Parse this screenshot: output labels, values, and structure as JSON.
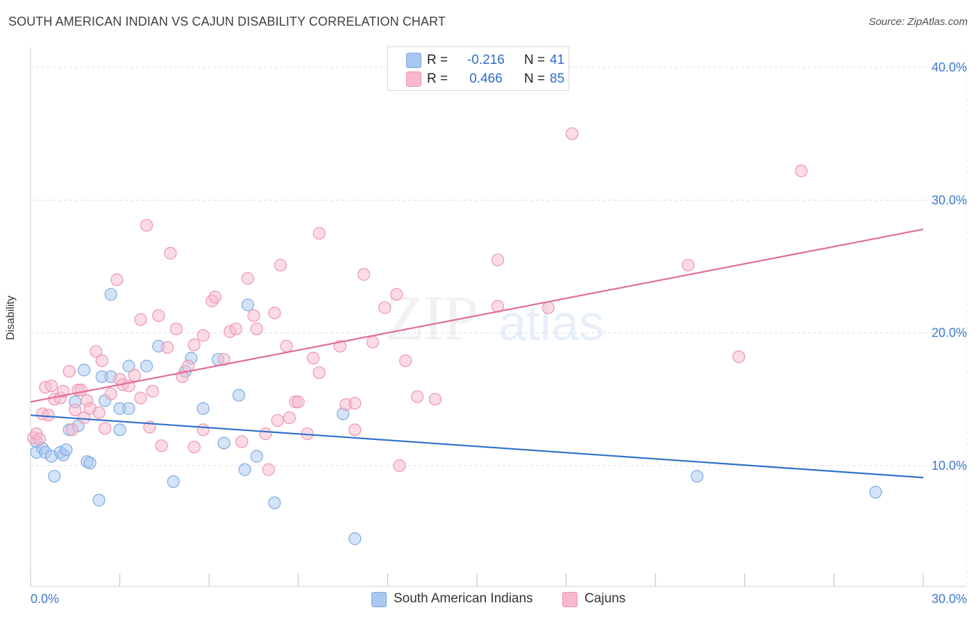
{
  "header": {
    "title": "SOUTH AMERICAN INDIAN VS CAJUN DISABILITY CORRELATION CHART",
    "source": "Source: ZipAtlas.com"
  },
  "legend": {
    "rows": [
      {
        "r_label": "R =",
        "r_value": "-0.216",
        "n_label": "N =",
        "n_value": "41",
        "color": "#a9c8f0"
      },
      {
        "r_label": "R =",
        "r_value": "0.466",
        "n_label": "N =",
        "n_value": "85",
        "color": "#f7b9cb"
      }
    ]
  },
  "bottom_legend": [
    {
      "label": "South American Indians",
      "color": "#a9c8f0"
    },
    {
      "label": "Cajuns",
      "color": "#f7b9cb"
    }
  ],
  "watermark": {
    "zip": "ZIP",
    "atlas": "atlas"
  },
  "chart_data": {
    "type": "scatter",
    "title": "SOUTH AMERICAN INDIAN VS CAJUN DISABILITY CORRELATION CHART",
    "xlabel": "",
    "ylabel": "Disability",
    "xlim": [
      0,
      30
    ],
    "ylim": [
      2,
      42
    ],
    "x_ticks": [
      {
        "v": 0,
        "label": "0.0%"
      },
      {
        "v": 30,
        "label": "30.0%"
      }
    ],
    "y_ticks": [
      {
        "v": 10,
        "label": "10.0%"
      },
      {
        "v": 20,
        "label": "20.0%"
      },
      {
        "v": 30,
        "label": "30.0%"
      },
      {
        "v": 40,
        "label": "40.0%"
      }
    ],
    "grid": true,
    "series": [
      {
        "name": "South American Indians",
        "color": "#a9c8f0",
        "stroke": "#7aaae3",
        "line_color": "#2f72cc",
        "trend": {
          "x": [
            0,
            30
          ],
          "y": [
            13.8,
            9.1
          ]
        },
        "points": [
          [
            0.2,
            11.8
          ],
          [
            0.2,
            11.0
          ],
          [
            0.4,
            11.3
          ],
          [
            0.5,
            11.0
          ],
          [
            0.7,
            10.7
          ],
          [
            0.8,
            9.2
          ],
          [
            1.0,
            11.0
          ],
          [
            1.1,
            10.8
          ],
          [
            1.2,
            11.2
          ],
          [
            1.3,
            12.7
          ],
          [
            1.5,
            14.8
          ],
          [
            1.6,
            13.0
          ],
          [
            1.8,
            17.2
          ],
          [
            1.9,
            10.3
          ],
          [
            2.0,
            10.2
          ],
          [
            2.3,
            7.4
          ],
          [
            2.4,
            16.7
          ],
          [
            2.5,
            14.9
          ],
          [
            2.7,
            22.9
          ],
          [
            2.7,
            16.7
          ],
          [
            3.0,
            14.3
          ],
          [
            3.0,
            12.7
          ],
          [
            3.3,
            14.3
          ],
          [
            3.3,
            17.5
          ],
          [
            3.9,
            17.5
          ],
          [
            4.3,
            19.0
          ],
          [
            4.8,
            8.8
          ],
          [
            5.2,
            17.1
          ],
          [
            5.4,
            18.1
          ],
          [
            5.8,
            14.3
          ],
          [
            6.3,
            18.0
          ],
          [
            6.5,
            11.7
          ],
          [
            7.0,
            15.3
          ],
          [
            7.2,
            9.7
          ],
          [
            7.3,
            22.1
          ],
          [
            7.6,
            10.7
          ],
          [
            8.2,
            7.2
          ],
          [
            10.5,
            13.9
          ],
          [
            10.9,
            4.5
          ],
          [
            22.4,
            9.2
          ],
          [
            28.4,
            8.0
          ]
        ]
      },
      {
        "name": "Cajuns",
        "color": "#f7b9cb",
        "stroke": "#ee94b0",
        "line_color": "#e06d97",
        "trend": {
          "x": [
            0,
            30
          ],
          "y": [
            14.8,
            27.8
          ]
        },
        "points": [
          [
            0.1,
            12.1
          ],
          [
            0.2,
            12.4
          ],
          [
            0.3,
            12.0
          ],
          [
            0.4,
            13.9
          ],
          [
            0.5,
            15.9
          ],
          [
            0.6,
            13.8
          ],
          [
            0.7,
            16.0
          ],
          [
            0.8,
            15.0
          ],
          [
            1.0,
            15.1
          ],
          [
            1.1,
            15.6
          ],
          [
            1.3,
            17.1
          ],
          [
            1.4,
            12.7
          ],
          [
            1.5,
            14.2
          ],
          [
            1.6,
            15.7
          ],
          [
            1.7,
            15.7
          ],
          [
            1.8,
            13.6
          ],
          [
            1.9,
            14.9
          ],
          [
            2.0,
            14.3
          ],
          [
            2.2,
            18.6
          ],
          [
            2.3,
            14.0
          ],
          [
            2.4,
            17.9
          ],
          [
            2.5,
            12.8
          ],
          [
            2.7,
            15.4
          ],
          [
            2.9,
            24.0
          ],
          [
            3.0,
            16.5
          ],
          [
            3.1,
            16.1
          ],
          [
            3.3,
            16.0
          ],
          [
            3.5,
            16.8
          ],
          [
            3.7,
            21.0
          ],
          [
            3.7,
            15.1
          ],
          [
            3.9,
            28.1
          ],
          [
            4.0,
            12.9
          ],
          [
            4.1,
            15.6
          ],
          [
            4.3,
            21.3
          ],
          [
            4.4,
            11.5
          ],
          [
            4.6,
            18.9
          ],
          [
            4.7,
            26.0
          ],
          [
            4.9,
            20.3
          ],
          [
            5.1,
            16.7
          ],
          [
            5.3,
            17.5
          ],
          [
            5.5,
            19.1
          ],
          [
            5.5,
            11.4
          ],
          [
            5.8,
            12.7
          ],
          [
            5.8,
            19.8
          ],
          [
            6.1,
            22.4
          ],
          [
            6.2,
            22.7
          ],
          [
            6.5,
            18.0
          ],
          [
            6.7,
            20.1
          ],
          [
            6.9,
            20.3
          ],
          [
            7.1,
            11.8
          ],
          [
            7.3,
            24.1
          ],
          [
            7.5,
            21.3
          ],
          [
            7.6,
            20.3
          ],
          [
            7.9,
            12.4
          ],
          [
            8.0,
            9.7
          ],
          [
            8.2,
            21.5
          ],
          [
            8.3,
            13.4
          ],
          [
            8.4,
            25.1
          ],
          [
            8.6,
            19.0
          ],
          [
            8.7,
            13.6
          ],
          [
            8.9,
            14.8
          ],
          [
            9.0,
            14.8
          ],
          [
            9.3,
            12.4
          ],
          [
            9.5,
            18.1
          ],
          [
            9.7,
            17.0
          ],
          [
            9.7,
            27.5
          ],
          [
            10.4,
            19.0
          ],
          [
            10.6,
            14.6
          ],
          [
            10.9,
            14.7
          ],
          [
            10.9,
            12.7
          ],
          [
            11.2,
            24.4
          ],
          [
            11.5,
            19.3
          ],
          [
            11.9,
            21.9
          ],
          [
            12.3,
            22.9
          ],
          [
            12.4,
            10.0
          ],
          [
            12.6,
            17.9
          ],
          [
            13.0,
            15.2
          ],
          [
            13.6,
            15.0
          ],
          [
            15.7,
            25.5
          ],
          [
            15.7,
            22.0
          ],
          [
            17.4,
            21.9
          ],
          [
            18.2,
            35.0
          ],
          [
            22.1,
            25.1
          ],
          [
            23.8,
            18.2
          ],
          [
            25.9,
            32.2
          ]
        ]
      }
    ]
  }
}
